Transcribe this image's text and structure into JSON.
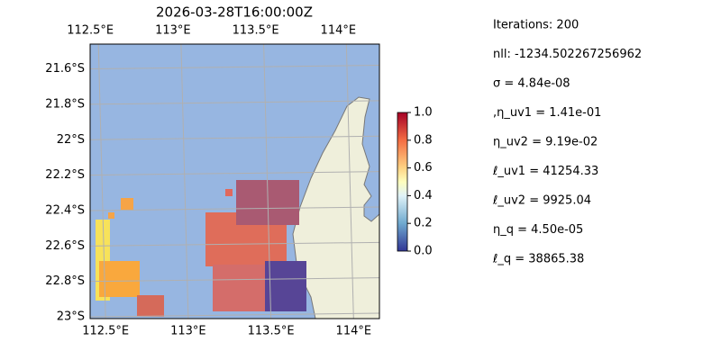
{
  "map": {
    "title": "2026-03-28T16:00:00Z",
    "xlim": [
      112.45,
      114.2
    ],
    "ylim": [
      -23.01,
      -21.46
    ],
    "lon_ticks": [
      {
        "value": 112.5,
        "label": "112.5°E"
      },
      {
        "value": 113,
        "label": "113°E"
      },
      {
        "value": 113.5,
        "label": "113.5°E"
      },
      {
        "value": 114,
        "label": "114°E"
      }
    ],
    "lat_ticks": [
      {
        "value": -21.6,
        "label": "21.6°S"
      },
      {
        "value": -21.8,
        "label": "21.8°S"
      },
      {
        "value": -22,
        "label": "22°S"
      },
      {
        "value": -22.2,
        "label": "22.2°S"
      },
      {
        "value": -22.4,
        "label": "22.4°S"
      },
      {
        "value": -22.6,
        "label": "22.6°S"
      },
      {
        "value": -22.8,
        "label": "22.8°S"
      },
      {
        "value": -23,
        "label": "23°S"
      }
    ],
    "grid": true
  },
  "colorbar": {
    "lim": [
      0,
      1
    ],
    "ticks": [
      {
        "value": 0,
        "label": "0.0"
      },
      {
        "value": 0.2,
        "label": "0.2"
      },
      {
        "value": 0.4,
        "label": "0.4"
      },
      {
        "value": 0.6,
        "label": "0.6"
      },
      {
        "value": 0.8,
        "label": "0.8"
      },
      {
        "value": 1,
        "label": "1.0"
      }
    ]
  },
  "annotations": [
    "Iterations: 200",
    "nll: -1234.502267256962",
    "σ = 4.84e-08",
    ",η_uv1 = 1.41e-01",
    "η_uv2 = 9.19e-02",
    "ℓ_uv1 = 41254.33",
    "ℓ_uv2 = 9925.04",
    "η_q = 4.50e-05",
    "ℓ_q = 38865.38"
  ]
}
